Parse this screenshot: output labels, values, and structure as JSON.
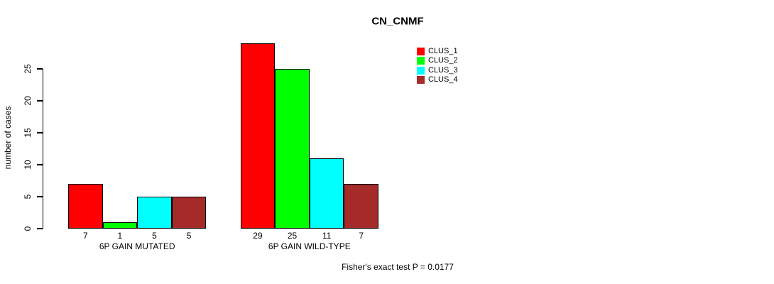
{
  "chart_data": {
    "type": "bar",
    "title": "CN_CNMF",
    "xlabel": "",
    "ylabel": "number of cases",
    "ylim": [
      0,
      25
    ],
    "yticks": [
      0,
      5,
      10,
      15,
      20,
      25
    ],
    "grid": false,
    "legend_position": "top-right",
    "categories": [
      "6P GAIN MUTATED",
      "6P GAIN WILD-TYPE"
    ],
    "series": [
      {
        "name": "CLUS_1",
        "color": "#ff0000",
        "values": [
          7,
          29
        ]
      },
      {
        "name": "CLUS_2",
        "color": "#00ff00",
        "values": [
          1,
          25
        ]
      },
      {
        "name": "CLUS_3",
        "color": "#00ffff",
        "values": [
          5,
          11
        ]
      },
      {
        "name": "CLUS_4",
        "color": "#a52a2a",
        "values": [
          5,
          7
        ]
      }
    ],
    "bar_value_labels": {
      "6P GAIN MUTATED": [
        7,
        1,
        5,
        5
      ],
      "6P GAIN WILD-TYPE": [
        29,
        25,
        11,
        7
      ]
    },
    "annotation": "Fisher's exact test P = 0.0177",
    "axis_color": "#000000",
    "background_color": "#ffffff"
  }
}
